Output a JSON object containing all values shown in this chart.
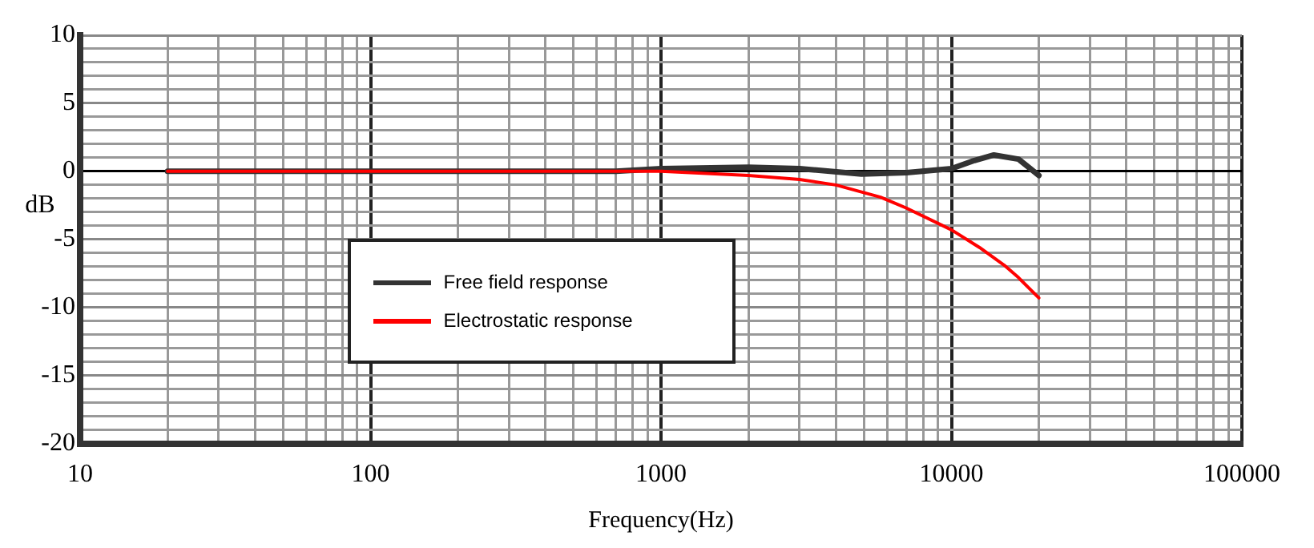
{
  "chart_data": {
    "type": "line",
    "xlabel": "Frequency(Hz)",
    "ylabel": "dB",
    "log": "x",
    "grid": true,
    "legend": "center left",
    "marker": "none",
    "line_style": "solid",
    "xlim": [
      10,
      100000
    ],
    "xticks": [
      10,
      100,
      1000,
      10000,
      100000
    ],
    "ylim": [
      -20,
      10
    ],
    "yticks": [
      -20,
      -15,
      -10,
      -5,
      0,
      5,
      10
    ],
    "series": [
      {
        "name": "Free field response",
        "color": "#333333",
        "x": [
          20,
          100,
          700,
          1000,
          2000,
          3000,
          4900,
          7000,
          10000,
          12000,
          14000,
          17000,
          20000
        ],
        "values": [
          0,
          0,
          0,
          0.2,
          0.3,
          0.2,
          -0.2,
          -0.1,
          0.2,
          0.8,
          1.2,
          0.9,
          -0.3
        ]
      },
      {
        "name": "Electrostatic response",
        "color": "#ff0000",
        "x": [
          20,
          100,
          600,
          1000,
          2000,
          3000,
          4000,
          5700,
          7000,
          10000,
          12500,
          15200,
          17000,
          20000
        ],
        "values": [
          0,
          0,
          0,
          0,
          -0.3,
          -0.6,
          -1,
          -1.9,
          -2.7,
          -4.3,
          -5.6,
          -6.9,
          -7.8,
          -9.3
        ]
      }
    ]
  }
}
